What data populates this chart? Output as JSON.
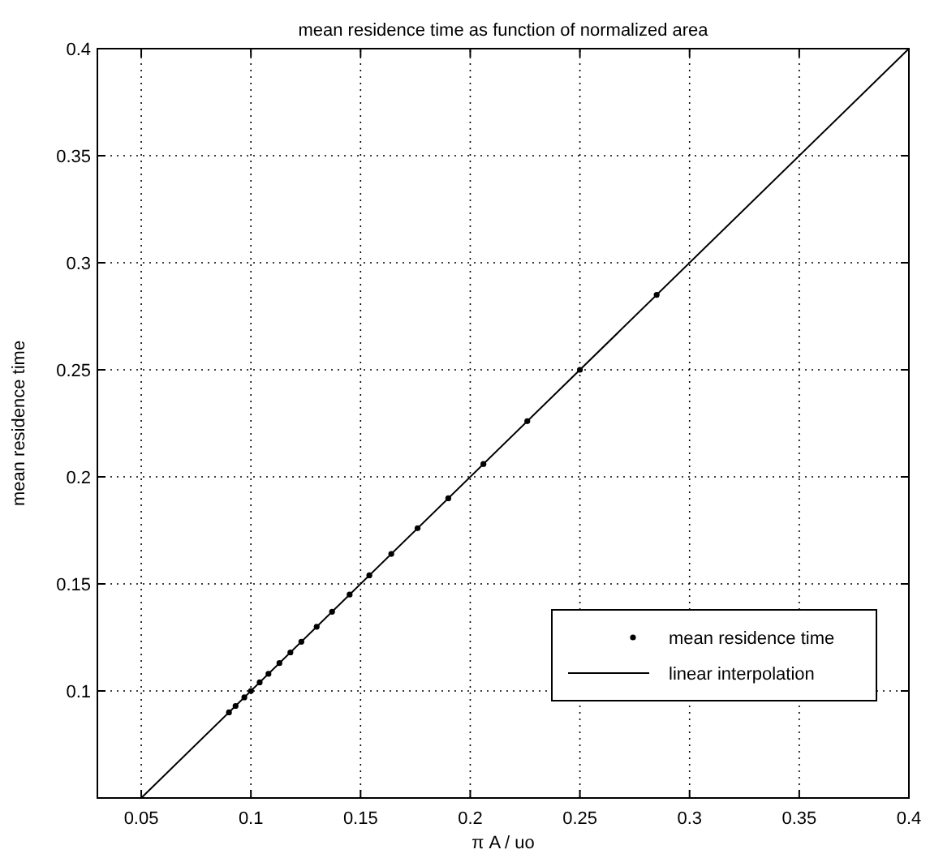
{
  "chart_data": {
    "type": "scatter",
    "title": "mean residence time as function of normalized area",
    "xlabel": "π A / uo",
    "ylabel": "mean residence time",
    "xlim": [
      0.03,
      0.4
    ],
    "ylim": [
      0.05,
      0.4
    ],
    "xticks": [
      0.05,
      0.1,
      0.15,
      0.2,
      0.25,
      0.3,
      0.35,
      0.4
    ],
    "yticks": [
      0.1,
      0.15,
      0.2,
      0.25,
      0.3,
      0.35,
      0.4
    ],
    "grid": true,
    "legend": "bottom right",
    "series": [
      {
        "name": "mean residence time",
        "color": "#000000",
        "marker": "circle",
        "x": [
          0.09,
          0.093,
          0.097,
          0.1,
          0.104,
          0.108,
          0.113,
          0.118,
          0.123,
          0.13,
          0.137,
          0.145,
          0.154,
          0.164,
          0.176,
          0.19,
          0.206,
          0.226,
          0.25,
          0.285
        ],
        "values": [
          0.09,
          0.093,
          0.097,
          0.1,
          0.104,
          0.108,
          0.113,
          0.118,
          0.123,
          0.13,
          0.137,
          0.145,
          0.154,
          0.164,
          0.176,
          0.19,
          0.206,
          0.226,
          0.25,
          0.285
        ]
      },
      {
        "name": "linear interpolation",
        "type": "line",
        "color": "#000000",
        "line_style": "solid",
        "x": [
          0.05,
          0.4
        ],
        "values": [
          0.05,
          0.4
        ]
      }
    ]
  }
}
